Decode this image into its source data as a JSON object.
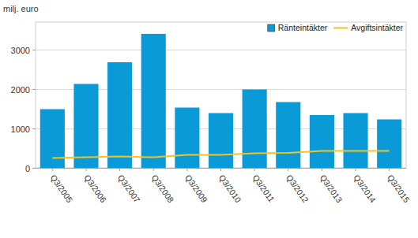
{
  "chart_data": {
    "type": "bar",
    "y_label": "milj. euro",
    "categories": [
      "Q3/2005",
      "Q3/2006",
      "Q3/2007",
      "Q3/2008",
      "Q3/2009",
      "Q3/2010",
      "Q3/2011",
      "Q3/2012",
      "Q3/2013",
      "Q3/2014",
      "Q3/2015"
    ],
    "series": [
      {
        "name": "Ränteintäkter",
        "type": "bar",
        "color": "#0a9ad8",
        "values": [
          1490,
          2130,
          2680,
          3400,
          1530,
          1390,
          1990,
          1670,
          1340,
          1390,
          1230
        ]
      },
      {
        "name": "Avgiftsintäkter",
        "type": "line",
        "color": "#f5c31c",
        "values": [
          250,
          270,
          290,
          270,
          330,
          330,
          370,
          380,
          430,
          430,
          430
        ]
      }
    ],
    "ylim": [
      0,
      3700
    ],
    "yticks": [
      0,
      1000,
      2000,
      3000
    ],
    "grid": true,
    "legend": "top-right"
  }
}
